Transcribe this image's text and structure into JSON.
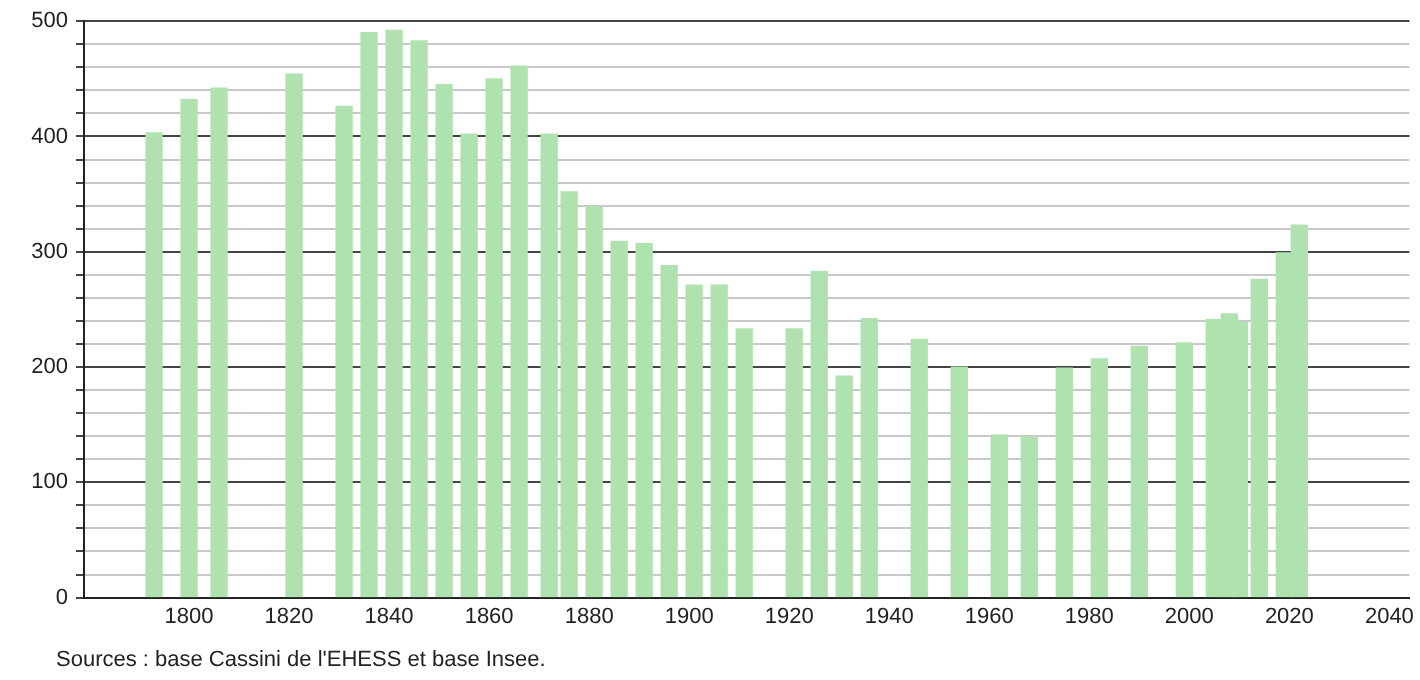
{
  "chart_data": {
    "type": "bar",
    "color": "#b0e2b0",
    "x": [
      1793,
      1800,
      1806,
      1821,
      1831,
      1836,
      1841,
      1846,
      1851,
      1856,
      1861,
      1866,
      1872,
      1876,
      1881,
      1886,
      1891,
      1896,
      1901,
      1906,
      1911,
      1921,
      1926,
      1931,
      1936,
      1946,
      1954,
      1962,
      1968,
      1975,
      1982,
      1990,
      1999,
      2005,
      2008,
      2010,
      2014,
      2019,
      2022
    ],
    "values": [
      403,
      432,
      442,
      454,
      426,
      490,
      492,
      483,
      445,
      402,
      450,
      461,
      402,
      352,
      339,
      309,
      307,
      288,
      271,
      271,
      233,
      233,
      283,
      192,
      242,
      224,
      200,
      141,
      139,
      199,
      207,
      218,
      221,
      241,
      246,
      239,
      276,
      299,
      323
    ],
    "xlim": [
      1779,
      2044
    ],
    "xticks": [
      1800,
      1820,
      1840,
      1860,
      1880,
      1900,
      1920,
      1940,
      1960,
      1980,
      2000,
      2020,
      2040
    ],
    "ylim": [
      0,
      500
    ],
    "yticks": [
      0,
      {
        "value": 20,
        "label": null
      },
      {
        "value": 40,
        "label": null
      },
      {
        "value": 60,
        "label": null
      },
      {
        "value": 80,
        "label": null
      },
      100,
      {
        "value": 120,
        "label": null
      },
      {
        "value": 140,
        "label": null
      },
      {
        "value": 160,
        "label": null
      },
      {
        "value": 180,
        "label": null
      },
      200,
      {
        "value": 220,
        "label": null
      },
      {
        "value": 240,
        "label": null
      },
      {
        "value": 260,
        "label": null
      },
      {
        "value": 280,
        "label": null
      },
      300,
      {
        "value": 320,
        "label": null
      },
      {
        "value": 340,
        "label": null
      },
      {
        "value": 360,
        "label": null
      },
      {
        "value": 380,
        "label": null
      },
      400,
      {
        "value": 420,
        "label": null
      },
      {
        "value": 440,
        "label": null
      },
      {
        "value": 460,
        "label": null
      },
      {
        "value": 480,
        "label": null
      },
      500
    ],
    "grid": "y",
    "legend": false,
    "annotations": [
      "Sources : base Cassini de l'EHESS et base Insee."
    ]
  }
}
